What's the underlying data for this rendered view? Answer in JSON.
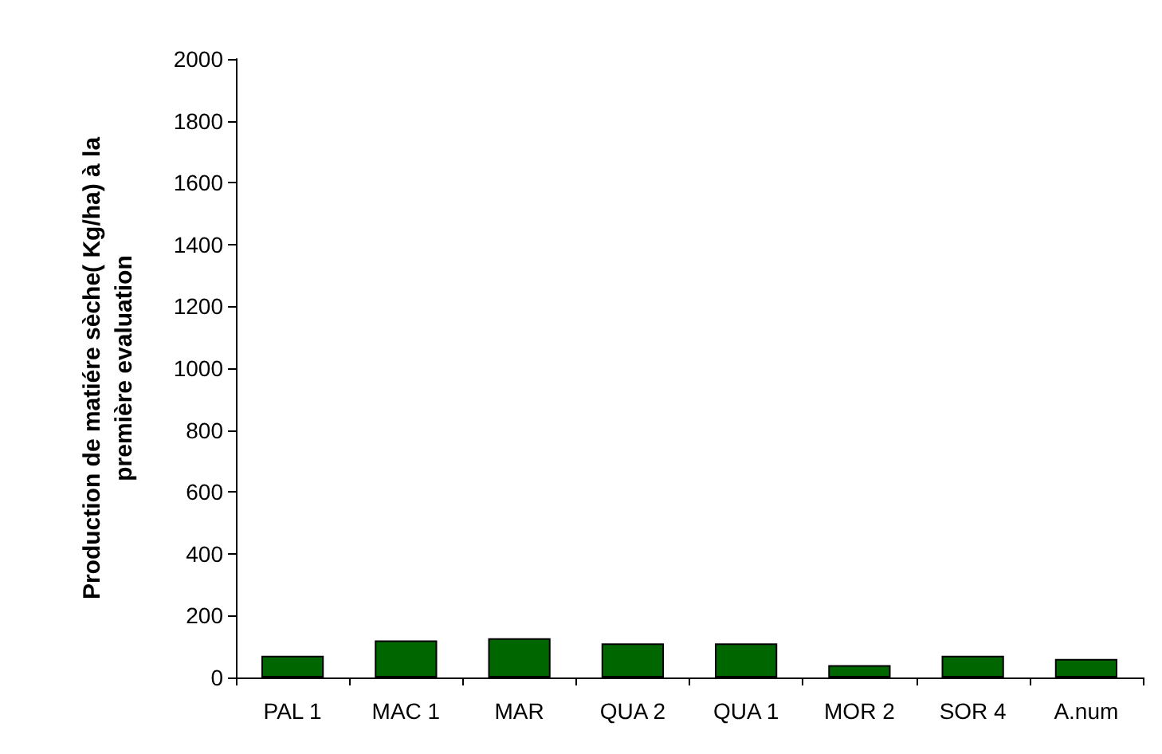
{
  "chart_data": {
    "type": "bar",
    "ylabel": "Production de matiére sèche( Kg/ha) à la\npremière evaluation",
    "categories": [
      "PAL 1",
      "MAC 1",
      "MAR",
      "QUA 2",
      "QUA 1",
      "MOR 2",
      "SOR 4",
      "A.num"
    ],
    "values": [
      70,
      120,
      127,
      110,
      110,
      40,
      70,
      60
    ],
    "color": "#006600",
    "ylim": [
      0,
      2000
    ],
    "yticks": [
      0,
      200,
      400,
      600,
      800,
      1000,
      1200,
      1400,
      1600,
      1800,
      2000
    ],
    "grid": false
  }
}
